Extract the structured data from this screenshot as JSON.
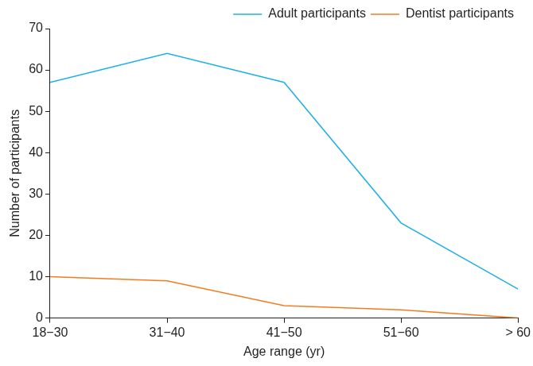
{
  "chart_data": {
    "type": "line",
    "x_label": "Age range (yr)",
    "y_label": "Number of participants",
    "categories": [
      "18−30",
      "31−40",
      "41−50",
      "51−60",
      "> 60"
    ],
    "series": [
      {
        "name": "Adult participants",
        "color": "#1fb0e6",
        "values": [
          57,
          64,
          57,
          23,
          7
        ]
      },
      {
        "name": "Dentist participants",
        "color": "#f47c20",
        "values": [
          10,
          9,
          3,
          2,
          0
        ]
      }
    ],
    "ylim": [
      0,
      70
    ],
    "yticks": [
      0,
      10,
      20,
      30,
      40,
      50,
      60,
      70
    ],
    "grid": false,
    "legend": "upper right",
    "marker": "none"
  }
}
